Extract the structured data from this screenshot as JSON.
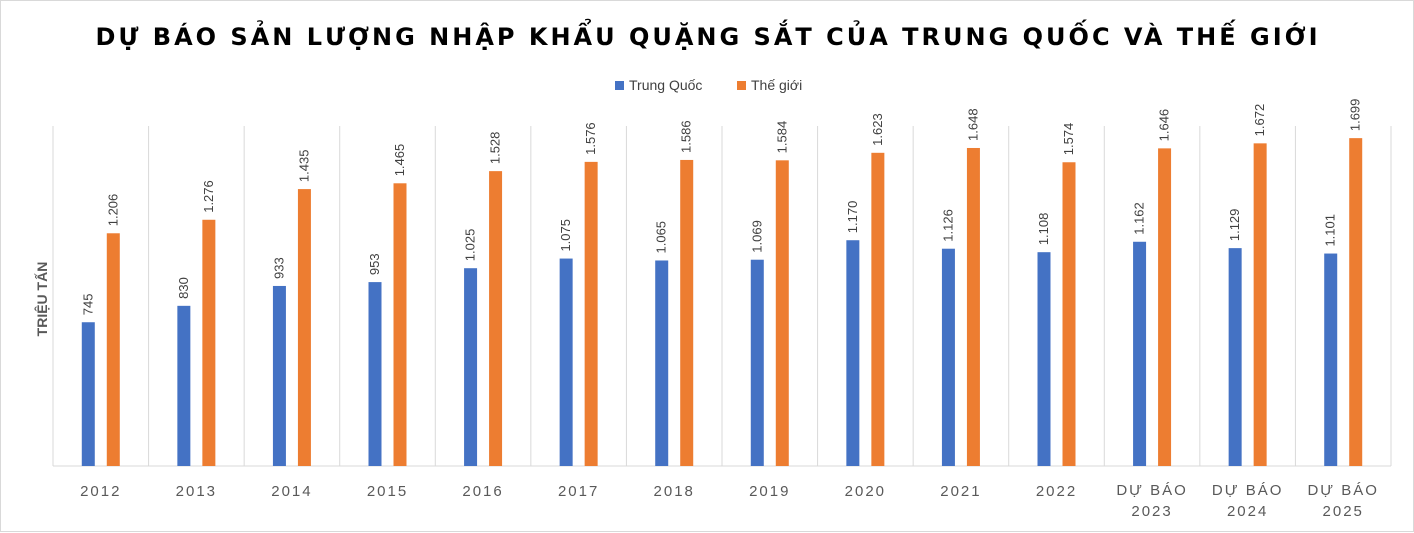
{
  "chart_data": {
    "type": "bar",
    "title": "DỰ BÁO SẢN LƯỢNG NHẬP KHẨU QUẶNG SẮT CỦA TRUNG QUỐC VÀ THẾ GIỚI",
    "xlabel": "",
    "ylabel": "TRIỆU TẤN",
    "ylim": [
      0,
      1850
    ],
    "grid": false,
    "legend_position": "top",
    "categories": [
      [
        "2012"
      ],
      [
        "2013"
      ],
      [
        "2014"
      ],
      [
        "2015"
      ],
      [
        "2016"
      ],
      [
        "2017"
      ],
      [
        "2018"
      ],
      [
        "2019"
      ],
      [
        "2020"
      ],
      [
        "2021"
      ],
      [
        "2022"
      ],
      [
        "DỰ BÁO",
        "2023"
      ],
      [
        "DỰ BÁO",
        "2024"
      ],
      [
        "DỰ BÁO",
        "2025"
      ]
    ],
    "series": [
      {
        "name": "Trung Quốc",
        "color": "#4472c4",
        "values": [
          745,
          830,
          933,
          953,
          1025,
          1075,
          1065,
          1069,
          1170,
          1126,
          1108,
          1162,
          1129,
          1101
        ],
        "labels": [
          "745",
          "830",
          "933",
          "953",
          "1.025",
          "1.075",
          "1.065",
          "1.069",
          "1.170",
          "1.126",
          "1.108",
          "1.162",
          "1.129",
          "1.101"
        ]
      },
      {
        "name": "Thế giới",
        "color": "#ed7d31",
        "values": [
          1206,
          1276,
          1435,
          1465,
          1528,
          1576,
          1586,
          1584,
          1623,
          1648,
          1574,
          1646,
          1672,
          1699
        ],
        "labels": [
          "1.206",
          "1.276",
          "1.435",
          "1.465",
          "1.528",
          "1.576",
          "1.586",
          "1.584",
          "1.623",
          "1.648",
          "1.574",
          "1.646",
          "1.672",
          "1.699"
        ]
      }
    ]
  }
}
